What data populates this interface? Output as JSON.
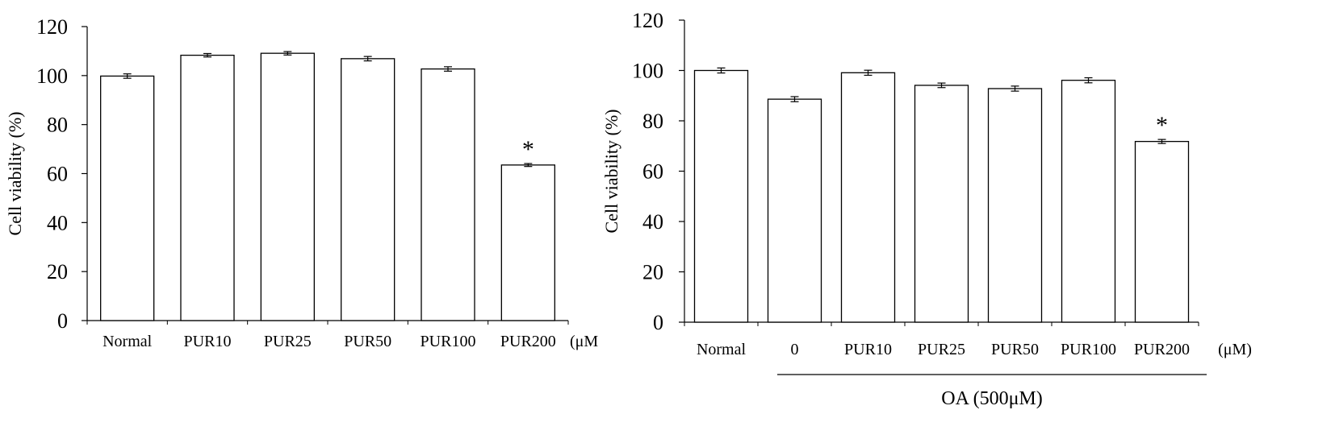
{
  "chart_data": [
    {
      "type": "bar",
      "title": "",
      "xlabel": "",
      "ylabel": "Cell viability (%)",
      "ylim": [
        0,
        120
      ],
      "yticks": [
        0,
        20,
        40,
        60,
        80,
        100,
        120
      ],
      "grid": false,
      "unit_label": "(μM",
      "categories": [
        "Normal",
        "PUR10",
        "PUR25",
        "PUR50",
        "PUR100",
        "PUR200"
      ],
      "values": [
        99.8,
        108.3,
        109.1,
        106.9,
        102.7,
        63.5
      ],
      "errors": [
        0.9,
        0.7,
        0.7,
        0.9,
        0.9,
        0.6
      ],
      "significance": [
        "",
        "",
        "",
        "",
        "",
        "*"
      ]
    },
    {
      "type": "bar",
      "title": "",
      "xlabel": "",
      "ylabel": "Cell viability (%)",
      "ylim": [
        0,
        120
      ],
      "yticks": [
        0,
        20,
        40,
        60,
        80,
        100,
        120
      ],
      "grid": false,
      "unit_label": "(μM)",
      "categories": [
        "Normal",
        "0",
        "PUR10",
        "PUR25",
        "PUR50",
        "PUR100",
        "PUR200"
      ],
      "values": [
        100.0,
        88.6,
        99.1,
        94.1,
        92.8,
        96.1,
        71.8
      ],
      "errors": [
        1.0,
        1.0,
        1.0,
        0.9,
        1.0,
        1.0,
        0.8
      ],
      "significance": [
        "",
        "",
        "",
        "",
        "",
        "",
        "*"
      ],
      "group_label": "OA (500μM)"
    }
  ]
}
